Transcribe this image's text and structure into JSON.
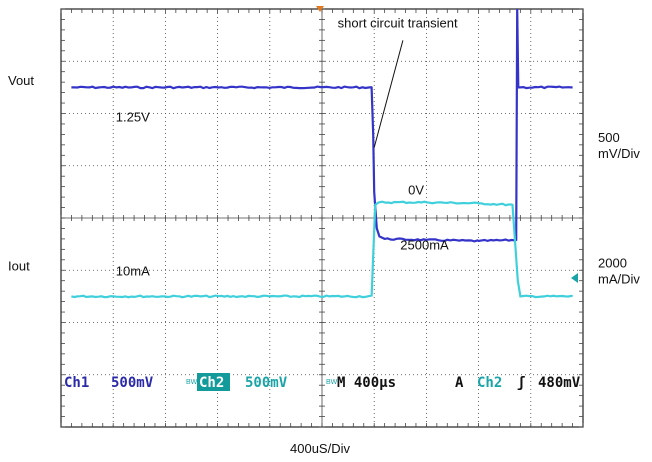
{
  "chart_data": {
    "type": "line",
    "xlabel": "400uS/Div",
    "xlim": [
      -4.8,
      4.8
    ],
    "ylim": [
      -4,
      4
    ],
    "grid": true,
    "x_unit": "div",
    "series": [
      {
        "name": "Vout",
        "color": "#3434c8",
        "x": [
          -4.8,
          0.95,
          0.98,
          1.0,
          1.05,
          1.1,
          1.2,
          2.0,
          3.0,
          3.72,
          3.74,
          3.76,
          3.8,
          4.8
        ],
        "y": [
          2.5,
          2.5,
          1.6,
          0.5,
          -0.2,
          -0.35,
          -0.4,
          -0.42,
          -0.44,
          -0.42,
          4.0,
          2.5,
          2.5,
          2.5
        ]
      },
      {
        "name": "Iout",
        "color": "#40d0dc",
        "x": [
          -4.8,
          0.95,
          1.02,
          1.1,
          2.0,
          3.0,
          3.65,
          3.75,
          3.8,
          4.8
        ],
        "y": [
          -1.5,
          -1.5,
          0.25,
          0.3,
          0.3,
          0.28,
          0.25,
          -1.2,
          -1.5,
          -1.5
        ]
      }
    ],
    "left_labels": [
      {
        "text": "Vout",
        "y": 2.55
      },
      {
        "text": "Iout",
        "y": -1.0
      }
    ],
    "right_labels": [
      {
        "lines": [
          "500",
          "mV/Div"
        ],
        "y": 1.45
      },
      {
        "lines": [
          "2000",
          "mA/Div"
        ],
        "y": -0.95
      }
    ],
    "annotations": [
      {
        "text": "short circuit transient",
        "x": 0.3,
        "y": 3.65
      },
      {
        "text": "1.25V",
        "x": -3.95,
        "y": 1.85
      },
      {
        "text": "0V",
        "x": 1.65,
        "y": 0.45
      },
      {
        "text": "2500mA",
        "x": 1.5,
        "y": -0.6
      },
      {
        "text": "10mA",
        "x": -3.95,
        "y": -1.1
      }
    ],
    "pointer_line": {
      "x1": 1.55,
      "y1": 3.4,
      "x2": 1.0,
      "y2": 1.35
    },
    "status_bar": {
      "ch1_label": "Ch1",
      "ch1_scale": "500mV",
      "ch2_label": "Ch2",
      "ch2_scale": "500mV",
      "timebase": "M 400µs",
      "trigger_mode": "A",
      "trigger_source": "Ch2",
      "trigger_slope": "ʃ",
      "trigger_level": "480mV",
      "bw_mark": "BW"
    }
  }
}
